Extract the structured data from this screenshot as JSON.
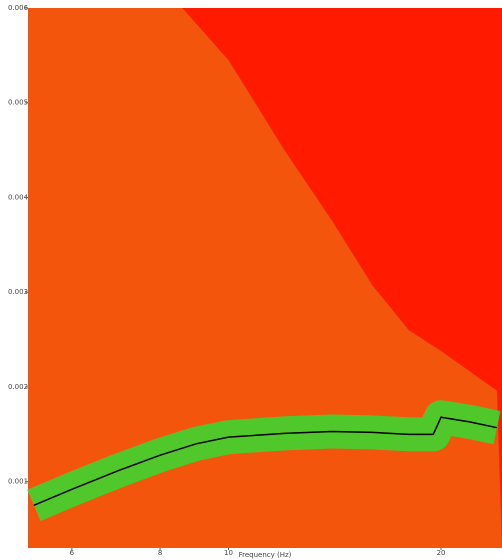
{
  "chart_data": {
    "type": "line",
    "xlabel": "Frequency (Hz)",
    "xscale": "log",
    "xlim": [
      5.2,
      24.4
    ],
    "xticks": [
      6,
      8,
      10,
      20
    ],
    "ylim": [
      0.0003,
      0.006
    ],
    "yticks": [
      0.001,
      0.002,
      0.003,
      0.004,
      0.005,
      0.006
    ],
    "background_color": "#ff1a00",
    "x": [
      5.3,
      6,
      7,
      8,
      9,
      10,
      12,
      14,
      16,
      18,
      19.5,
      20,
      22,
      24
    ],
    "series": [
      {
        "color": "#000000",
        "band_color": "#33dd33",
        "values": [
          0.00075,
          0.00092,
          0.00112,
          0.00128,
          0.0014,
          0.00147,
          0.00151,
          0.00153,
          0.00152,
          0.0015,
          0.0015,
          0.00168,
          0.00163,
          0.00157
        ]
      }
    ],
    "boundary": {
      "color": "#f06a10",
      "x": [
        8.6,
        10,
        12,
        14,
        16,
        18,
        20,
        24
      ],
      "values": [
        0.006,
        0.00545,
        0.0045,
        0.00376,
        0.00307,
        0.0026,
        0.00238,
        0.00196
      ]
    }
  }
}
